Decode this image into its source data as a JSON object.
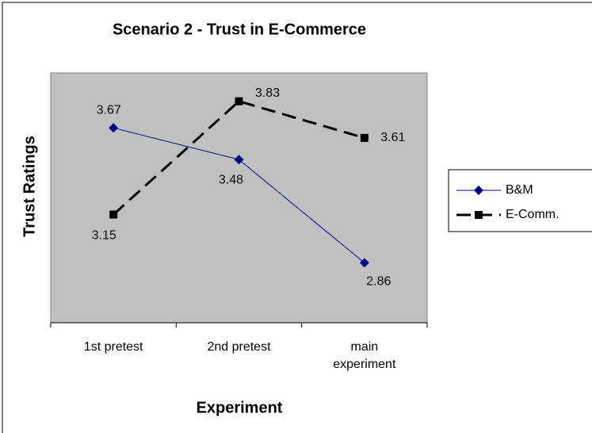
{
  "chart_data": {
    "type": "line",
    "title": "Scenario 2 - Trust in E-Commerce",
    "xlabel": "Experiment",
    "ylabel": "Trust Ratings",
    "categories": [
      "1st pretest",
      "2nd pretest",
      "main experiment"
    ],
    "series": [
      {
        "name": "B&M",
        "color": "#000080",
        "values": [
          3.67,
          3.48,
          2.86
        ]
      },
      {
        "name": "E-Comm.",
        "color": "#000000",
        "values": [
          3.15,
          3.83,
          3.61
        ]
      }
    ],
    "ylim": [
      2.5,
      4
    ],
    "grid": false,
    "legend": "right"
  }
}
